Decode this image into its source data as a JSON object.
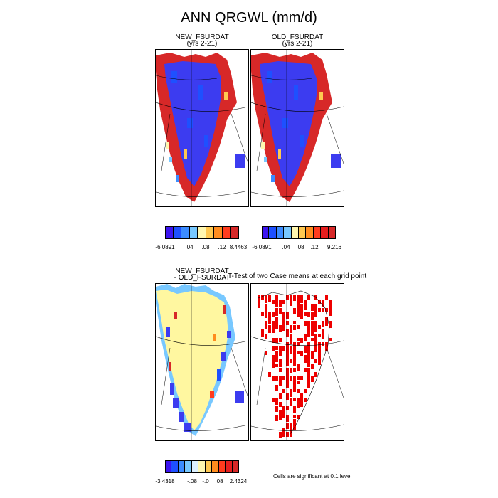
{
  "title": "ANN QRGWL (mm/d)",
  "panels": {
    "top_left": {
      "title_line1": "NEW_FSURDAT",
      "title_line2": "(yrs 2-21)"
    },
    "top_right": {
      "title_line1": "OLD_FSURDAT",
      "title_line2": "(yrs 2-21)"
    },
    "bottom_left": {
      "title_line1": "NEW_FSURDAT",
      "title_line2": "- OLD_FSURDAT"
    },
    "bottom_right": {
      "title": "T-Test of two Case means at each grid point"
    }
  },
  "colorbars": {
    "top_left": {
      "colors": [
        "#3c14f0",
        "#1e50ff",
        "#3c8cff",
        "#78c8ff",
        "#fff7b0",
        "#ffc850",
        "#ff8c1e",
        "#ff3c1e",
        "#d72828"
      ],
      "labels": [
        "-6.0891",
        ".04",
        ".08",
        ".12",
        "8.4463"
      ]
    },
    "top_right": {
      "colors": [
        "#3c14f0",
        "#1e50ff",
        "#3c8cff",
        "#78c8ff",
        "#fff7b0",
        "#ffc850",
        "#ff8c1e",
        "#ff3c1e",
        "#e61e1e",
        "#d72828"
      ],
      "labels": [
        "-6.0891",
        ".04",
        ".08",
        ".12",
        "9.216"
      ]
    },
    "bottom": {
      "colors": [
        "#3c14f0",
        "#1e50ff",
        "#3c8cff",
        "#78c8ff",
        "#dcf0ff",
        "#fff7b0",
        "#ffc850",
        "#ff8c1e",
        "#ff3c1e",
        "#e61e1e",
        "#d72828"
      ],
      "labels": [
        "-3.4318",
        "-.08",
        "-.0",
        ".08",
        "2.4324"
      ]
    }
  },
  "footnote": "Cells are significant at 0.1 level",
  "colors": {
    "ice_blue": "#3c3cf0",
    "coast_red": "#d72828",
    "diff_yellow": "#fff7a0",
    "sig_red": "#ee0000"
  }
}
